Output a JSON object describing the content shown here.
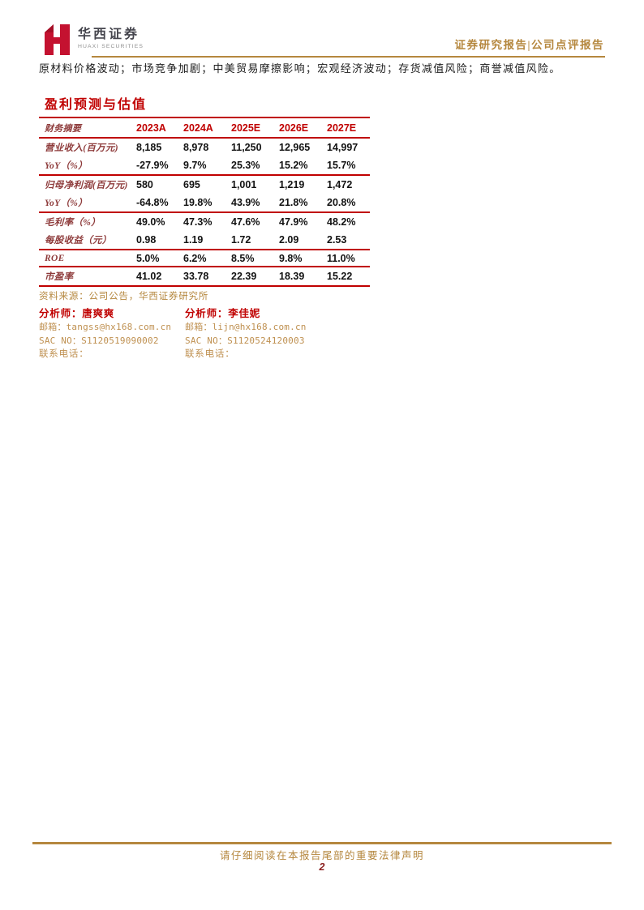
{
  "header": {
    "brand": {
      "name_cn": "华西证券",
      "name_en": "HUAXI SECURITIES"
    },
    "report_type": "证券研究报告|公司点评报告"
  },
  "risk_text": "原材料价格波动；市场竞争加剧；中美贸易摩擦影响；宏观经济波动；存货减值风险；商誉减值风险。",
  "section": {
    "title": "盈利预测与估值"
  },
  "table": {
    "header_label": "财务摘要",
    "columns": [
      "2023A",
      "2024A",
      "2025E",
      "2026E",
      "2027E"
    ],
    "row_groups": [
      [
        {
          "label": "营业收入(百万元)",
          "values": [
            "8,185",
            "8,978",
            "11,250",
            "12,965",
            "14,997"
          ]
        },
        {
          "label": "YoY（%）",
          "values": [
            "-27.9%",
            "9.7%",
            "25.3%",
            "15.2%",
            "15.7%"
          ]
        }
      ],
      [
        {
          "label": "归母净利润(百万元)",
          "values": [
            "580",
            "695",
            "1,001",
            "1,219",
            "1,472"
          ]
        },
        {
          "label": "YoY（%）",
          "values": [
            "-64.8%",
            "19.8%",
            "43.9%",
            "21.8%",
            "20.8%"
          ]
        }
      ],
      [
        {
          "label": "毛利率（%）",
          "values": [
            "49.0%",
            "47.3%",
            "47.6%",
            "47.9%",
            "48.2%"
          ]
        },
        {
          "label": "每股收益（元）",
          "values": [
            "0.98",
            "1.19",
            "1.72",
            "2.09",
            "2.53"
          ]
        }
      ],
      [
        {
          "label": "ROE",
          "values": [
            "5.0%",
            "6.2%",
            "8.5%",
            "9.8%",
            "11.0%"
          ]
        }
      ],
      [
        {
          "label": "市盈率",
          "values": [
            "41.02",
            "33.78",
            "22.39",
            "18.39",
            "15.22"
          ]
        }
      ]
    ],
    "source": "资料来源：公司公告，华西证券研究所"
  },
  "analysts": [
    {
      "name_line": "分析师：唐爽爽",
      "email_line": "邮箱：tangss@hx168.com.cn",
      "sac_line": "SAC NO：S1120519090002",
      "phone_line": "联系电话："
    },
    {
      "name_line": "分析师：李佳妮",
      "email_line": "邮箱：lijn@hx168.com.cn",
      "sac_line": "SAC NO：S1120524120003",
      "phone_line": "联系电话："
    }
  ],
  "footer": {
    "notice": "请仔细阅读在本报告尾部的重要法律声明",
    "page_number": "2"
  },
  "colors": {
    "accent_red": "#c00000",
    "label_maroon": "#8e3b3b",
    "gold": "#b5873e",
    "logo_red": "#c41230",
    "page_number_red": "#8b1f1f"
  }
}
